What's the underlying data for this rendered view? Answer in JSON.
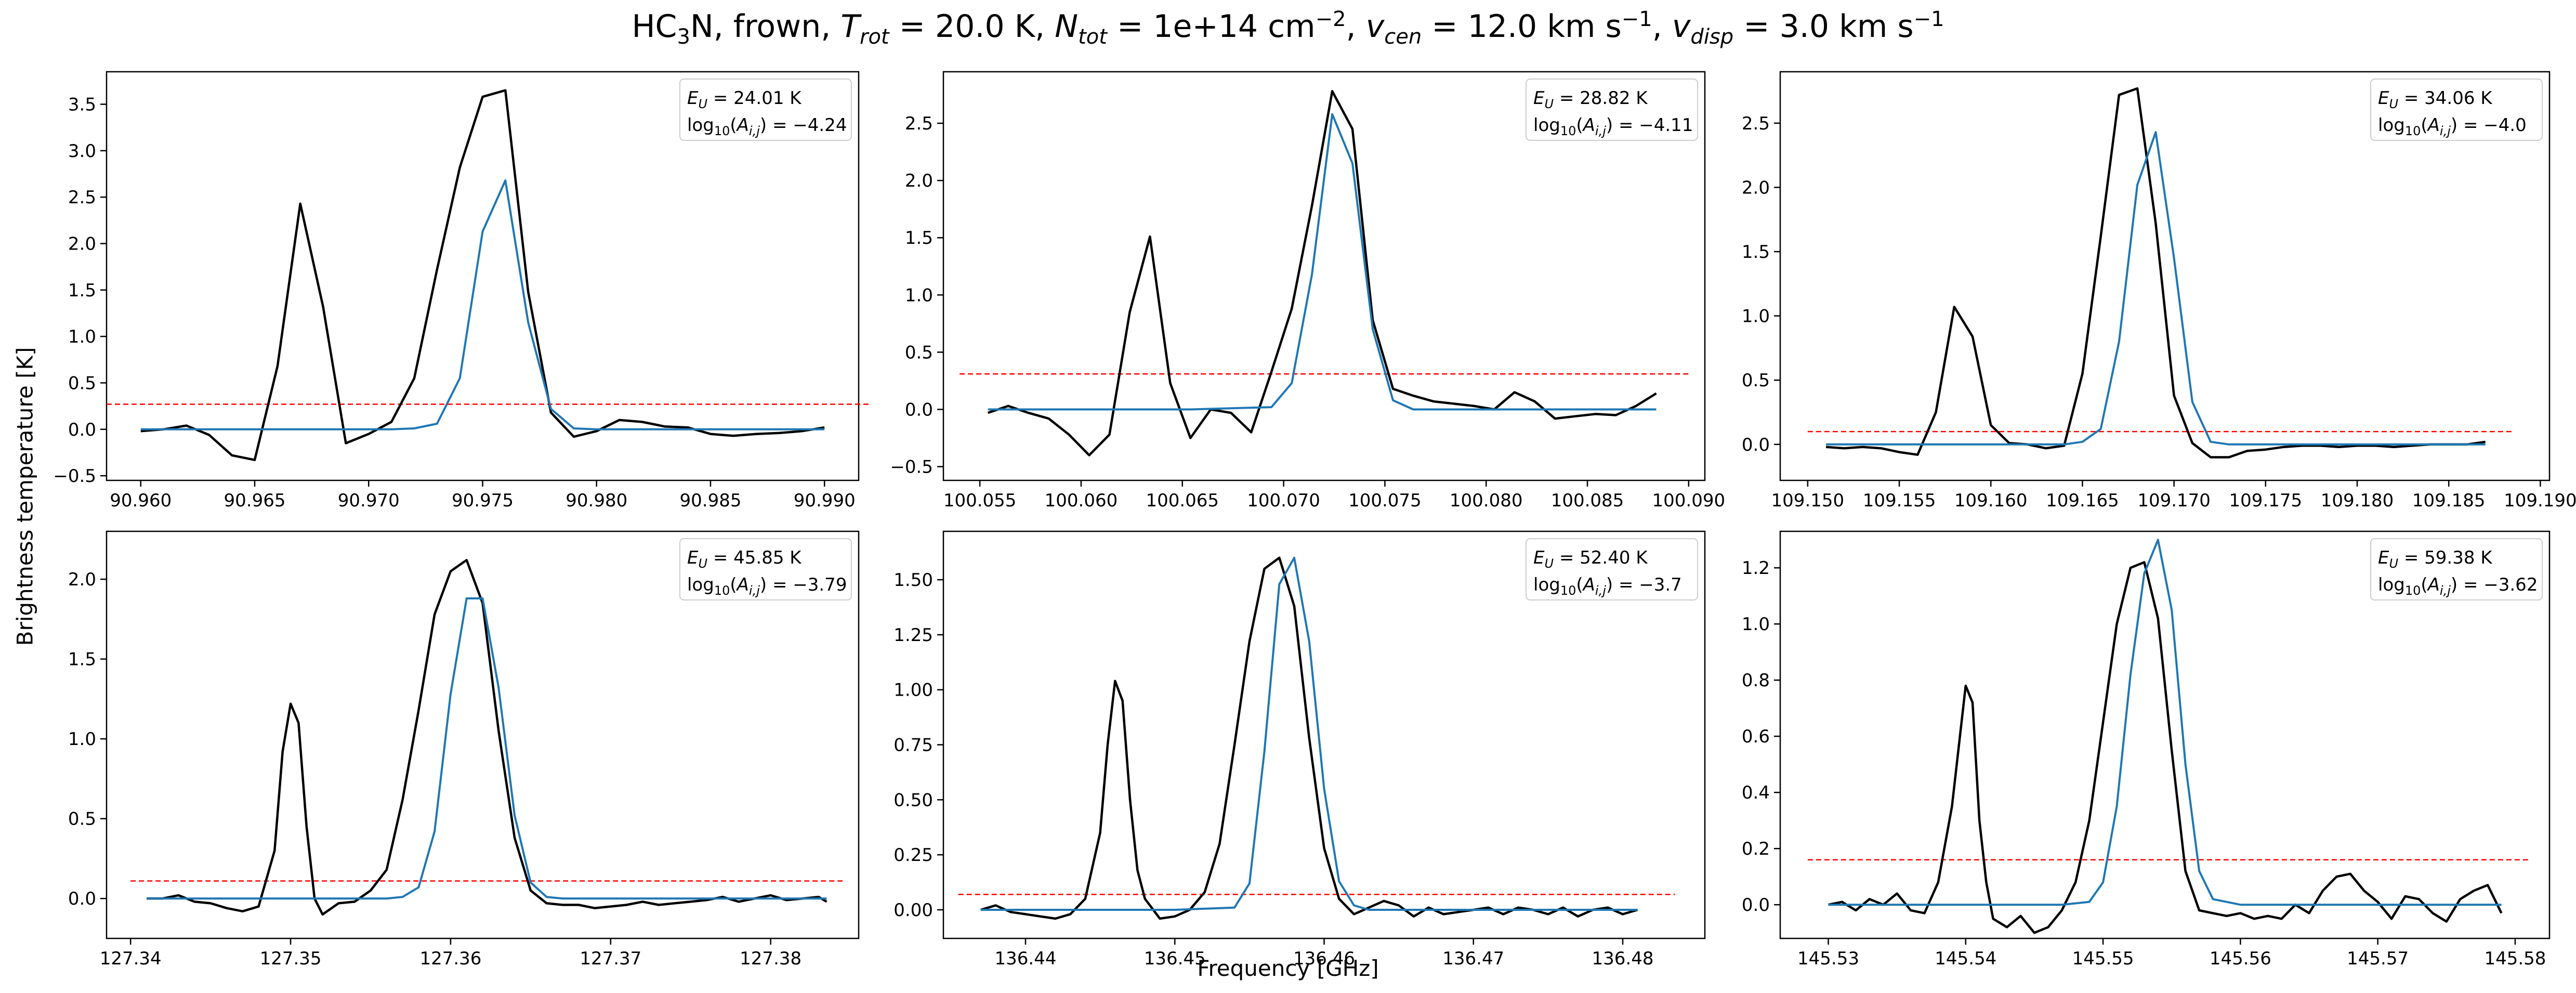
{
  "figure": {
    "title_parts": [
      "HC",
      {
        "sub": "3"
      },
      "N, frown, ",
      {
        "i": "T"
      },
      {
        "isub": "rot"
      },
      " =  20.0 K, ",
      {
        "i": "N"
      },
      {
        "isub": "tot"
      },
      " =  1e+14 cm",
      {
        "sup": "−2"
      },
      ", ",
      {
        "i": "v"
      },
      {
        "isub": "cen"
      },
      " =  12.0 km s",
      {
        "sup": "−1"
      },
      ", ",
      {
        "i": "v"
      },
      {
        "isub": "disp"
      },
      " =  3.0 km s",
      {
        "sup": "−1"
      }
    ],
    "xlabel": "Frequency [GHz]",
    "ylabel": "Brightness temperature [K]"
  },
  "colors": {
    "observed": "#000000",
    "model": "#1f77b4",
    "threshold": "#ff0000"
  },
  "chart_data": [
    {
      "type": "line",
      "xlim": [
        90.9585,
        90.9915
      ],
      "ylim": [
        -0.55,
        3.85
      ],
      "xticks": [
        "90.960",
        "90.965",
        "90.970",
        "90.975",
        "90.980",
        "90.985",
        "90.990"
      ],
      "yticks": [
        "−0.5",
        "0.0",
        "0.5",
        "1.0",
        "1.5",
        "2.0",
        "2.5",
        "3.0",
        "3.5"
      ],
      "legend_location": "top-right",
      "legend": {
        "EU": "24.01",
        "logA": "−4.24"
      },
      "threshold": 0.27,
      "threshold_x": [
        90.9585,
        90.992
      ],
      "series": [
        {
          "role": "observed",
          "x": [
            90.96,
            90.961,
            90.962,
            90.963,
            90.964,
            90.965,
            90.966,
            90.967,
            90.968,
            90.969,
            90.97,
            90.971,
            90.972,
            90.973,
            90.974,
            90.975,
            90.976,
            90.977,
            90.978,
            90.979,
            90.98,
            90.981,
            90.982,
            90.983,
            90.984,
            90.985,
            90.986,
            90.987,
            90.988,
            90.989,
            90.99
          ],
          "y": [
            -0.02,
            0.0,
            0.04,
            -0.06,
            -0.28,
            -0.33,
            0.68,
            2.43,
            1.32,
            -0.15,
            -0.05,
            0.08,
            0.55,
            1.72,
            2.82,
            3.58,
            3.65,
            1.48,
            0.18,
            -0.08,
            -0.02,
            0.1,
            0.08,
            0.03,
            0.02,
            -0.05,
            -0.07,
            -0.05,
            -0.04,
            -0.02,
            0.02
          ]
        },
        {
          "role": "model",
          "x": [
            90.96,
            90.961,
            90.962,
            90.963,
            90.964,
            90.965,
            90.966,
            90.967,
            90.968,
            90.969,
            90.97,
            90.971,
            90.972,
            90.973,
            90.974,
            90.975,
            90.976,
            90.977,
            90.978,
            90.979,
            90.98,
            90.981,
            90.982,
            90.983,
            90.984,
            90.985,
            90.986,
            90.987,
            90.988,
            90.989,
            90.99
          ],
          "y": [
            0,
            0,
            0,
            0,
            0,
            0,
            0,
            0,
            0,
            0,
            0,
            0,
            0.01,
            0.06,
            0.55,
            2.13,
            2.68,
            1.15,
            0.22,
            0.01,
            0,
            0,
            0,
            0,
            0,
            0,
            0,
            0,
            0,
            0,
            0
          ]
        }
      ]
    },
    {
      "type": "line",
      "xlim": [
        100.0532,
        100.0908
      ],
      "ylim": [
        -0.62,
        2.95
      ],
      "xticks": [
        "100.055",
        "100.060",
        "100.065",
        "100.070",
        "100.075",
        "100.080",
        "100.085",
        "100.090"
      ],
      "yticks": [
        "−0.5",
        "0.0",
        "0.5",
        "1.0",
        "1.5",
        "2.0",
        "2.5"
      ],
      "legend_location": "top-right",
      "legend": {
        "EU": "28.82",
        "logA": "−4.11"
      },
      "threshold": 0.31,
      "threshold_x": [
        100.054,
        100.09
      ],
      "series": [
        {
          "role": "observed",
          "x": [
            100.0554,
            100.0564,
            100.0574,
            100.0584,
            100.0594,
            100.0604,
            100.0614,
            100.0624,
            100.0634,
            100.0644,
            100.0654,
            100.0664,
            100.0674,
            100.0684,
            100.0694,
            100.0704,
            100.0714,
            100.0724,
            100.0734,
            100.0744,
            100.0754,
            100.0764,
            100.0774,
            100.0784,
            100.0794,
            100.0804,
            100.0814,
            100.0824,
            100.0834,
            100.0844,
            100.0854,
            100.0864,
            100.0874,
            100.0884
          ],
          "y": [
            -0.03,
            0.03,
            -0.03,
            -0.08,
            -0.22,
            -0.4,
            -0.22,
            0.85,
            1.51,
            0.23,
            -0.25,
            0.0,
            -0.03,
            -0.2,
            0.33,
            0.88,
            1.78,
            2.78,
            2.45,
            0.78,
            0.18,
            0.12,
            0.07,
            0.05,
            0.03,
            0.0,
            0.15,
            0.07,
            -0.08,
            -0.06,
            -0.04,
            -0.05,
            0.03,
            0.14
          ]
        },
        {
          "role": "model",
          "x": [
            100.0554,
            100.0604,
            100.0654,
            100.0694,
            100.0704,
            100.0714,
            100.0724,
            100.0734,
            100.0744,
            100.0754,
            100.0764,
            100.0804,
            100.0884
          ],
          "y": [
            0,
            0,
            0,
            0.02,
            0.23,
            1.18,
            2.58,
            2.15,
            0.7,
            0.08,
            0.0,
            0,
            0
          ]
        }
      ]
    },
    {
      "type": "line",
      "xlim": [
        109.1485,
        109.1905
      ],
      "ylim": [
        -0.28,
        2.9
      ],
      "xticks": [
        "109.150",
        "109.155",
        "109.160",
        "109.165",
        "109.170",
        "109.175",
        "109.180",
        "109.185",
        "109.190"
      ],
      "yticks": [
        "0.0",
        "0.5",
        "1.0",
        "1.5",
        "2.0",
        "2.5"
      ],
      "legend_location": "top-right",
      "legend": {
        "EU": "34.06",
        "logA": "−4.0"
      },
      "threshold": 0.1,
      "threshold_x": [
        109.15,
        109.1885
      ],
      "series": [
        {
          "role": "observed",
          "x": [
            109.151,
            109.152,
            109.153,
            109.154,
            109.155,
            109.156,
            109.157,
            109.158,
            109.159,
            109.16,
            109.161,
            109.162,
            109.163,
            109.164,
            109.165,
            109.166,
            109.167,
            109.168,
            109.169,
            109.17,
            109.171,
            109.172,
            109.173,
            109.174,
            109.175,
            109.176,
            109.177,
            109.178,
            109.179,
            109.18,
            109.181,
            109.182,
            109.183,
            109.184,
            109.185,
            109.186,
            109.187
          ],
          "y": [
            -0.02,
            -0.03,
            -0.02,
            -0.03,
            -0.06,
            -0.08,
            0.25,
            1.07,
            0.84,
            0.15,
            0.01,
            0.0,
            -0.03,
            -0.01,
            0.55,
            1.62,
            2.72,
            2.77,
            1.72,
            0.38,
            0.01,
            -0.1,
            -0.1,
            -0.05,
            -0.04,
            -0.02,
            -0.01,
            -0.01,
            -0.02,
            -0.01,
            -0.01,
            -0.02,
            -0.01,
            0.0,
            0.0,
            0.0,
            0.02
          ]
        },
        {
          "role": "model",
          "x": [
            109.151,
            109.16,
            109.164,
            109.165,
            109.166,
            109.167,
            109.168,
            109.169,
            109.17,
            109.171,
            109.172,
            109.173,
            109.18,
            109.187
          ],
          "y": [
            0,
            0,
            0,
            0.02,
            0.12,
            0.8,
            2.02,
            2.43,
            1.45,
            0.33,
            0.02,
            0,
            0,
            0
          ]
        }
      ]
    },
    {
      "type": "line",
      "xlim": [
        127.3385,
        127.3855
      ],
      "ylim": [
        -0.25,
        2.3
      ],
      "xticks": [
        "127.34",
        "127.35",
        "127.36",
        "127.37",
        "127.38"
      ],
      "yticks": [
        "0.0",
        "0.5",
        "1.0",
        "1.5",
        "2.0"
      ],
      "legend_location": "top-right",
      "legend": {
        "EU": "45.85",
        "logA": "−3.79"
      },
      "threshold": 0.11,
      "threshold_x": [
        127.34,
        127.3845
      ],
      "series": [
        {
          "role": "observed",
          "x": [
            127.341,
            127.342,
            127.343,
            127.344,
            127.345,
            127.346,
            127.347,
            127.348,
            127.349,
            127.3495,
            127.35,
            127.3505,
            127.351,
            127.3515,
            127.352,
            127.353,
            127.354,
            127.355,
            127.356,
            127.357,
            127.358,
            127.359,
            127.36,
            127.361,
            127.362,
            127.363,
            127.364,
            127.365,
            127.366,
            127.367,
            127.368,
            127.369,
            127.37,
            127.371,
            127.372,
            127.373,
            127.374,
            127.375,
            127.376,
            127.377,
            127.378,
            127.379,
            127.38,
            127.381,
            127.382,
            127.383,
            127.3835
          ],
          "y": [
            0.0,
            0.0,
            0.02,
            -0.02,
            -0.03,
            -0.06,
            -0.08,
            -0.05,
            0.3,
            0.92,
            1.22,
            1.1,
            0.45,
            0.0,
            -0.1,
            -0.03,
            -0.02,
            0.05,
            0.18,
            0.62,
            1.18,
            1.78,
            2.05,
            2.12,
            1.85,
            1.05,
            0.38,
            0.05,
            -0.03,
            -0.04,
            -0.04,
            -0.06,
            -0.05,
            -0.04,
            -0.02,
            -0.04,
            -0.03,
            -0.02,
            -0.01,
            0.01,
            -0.02,
            0.0,
            0.02,
            -0.01,
            0.0,
            0.01,
            -0.02
          ]
        },
        {
          "role": "model",
          "x": [
            127.341,
            127.35,
            127.356,
            127.357,
            127.358,
            127.359,
            127.36,
            127.361,
            127.362,
            127.363,
            127.364,
            127.365,
            127.366,
            127.367,
            127.368,
            127.3835
          ],
          "y": [
            0,
            0,
            0,
            0.01,
            0.07,
            0.42,
            1.28,
            1.88,
            1.88,
            1.32,
            0.52,
            0.1,
            0.01,
            0,
            0,
            0
          ]
        }
      ]
    },
    {
      "type": "line",
      "xlim": [
        136.4345,
        136.4855
      ],
      "ylim": [
        -0.13,
        1.72
      ],
      "xticks": [
        "136.44",
        "136.45",
        "136.46",
        "136.47",
        "136.48"
      ],
      "yticks": [
        "0.00",
        "0.25",
        "0.50",
        "0.75",
        "1.00",
        "1.25",
        "1.50"
      ],
      "legend_location": "top-right",
      "legend": {
        "EU": "52.40",
        "logA": "−3.7"
      },
      "threshold": 0.07,
      "threshold_x": [
        136.4355,
        136.4835
      ],
      "series": [
        {
          "role": "observed",
          "x": [
            136.437,
            136.438,
            136.439,
            136.44,
            136.441,
            136.442,
            136.443,
            136.444,
            136.445,
            136.4455,
            136.446,
            136.4465,
            136.447,
            136.4475,
            136.448,
            136.449,
            136.45,
            136.451,
            136.452,
            136.453,
            136.454,
            136.455,
            136.456,
            136.457,
            136.458,
            136.459,
            136.46,
            136.461,
            136.462,
            136.463,
            136.464,
            136.465,
            136.466,
            136.467,
            136.468,
            136.469,
            136.47,
            136.471,
            136.472,
            136.473,
            136.474,
            136.475,
            136.476,
            136.477,
            136.478,
            136.479,
            136.48,
            136.481
          ],
          "y": [
            0.0,
            0.02,
            -0.01,
            -0.02,
            -0.03,
            -0.04,
            -0.02,
            0.05,
            0.35,
            0.75,
            1.04,
            0.95,
            0.5,
            0.18,
            0.05,
            -0.04,
            -0.03,
            0.0,
            0.08,
            0.3,
            0.75,
            1.22,
            1.55,
            1.6,
            1.38,
            0.78,
            0.28,
            0.05,
            -0.02,
            0.01,
            0.04,
            0.02,
            -0.03,
            0.01,
            -0.02,
            -0.01,
            0.0,
            0.01,
            -0.02,
            0.01,
            0.0,
            -0.02,
            0.01,
            -0.03,
            0.0,
            0.01,
            -0.02,
            0.0
          ]
        },
        {
          "role": "model",
          "x": [
            136.437,
            136.45,
            136.454,
            136.455,
            136.456,
            136.457,
            136.458,
            136.459,
            136.46,
            136.461,
            136.462,
            136.463,
            136.465,
            136.481
          ],
          "y": [
            0,
            0,
            0.01,
            0.12,
            0.72,
            1.48,
            1.6,
            1.22,
            0.55,
            0.13,
            0.02,
            0,
            0,
            0
          ]
        }
      ]
    },
    {
      "type": "line",
      "xlim": [
        145.5265,
        145.5825
      ],
      "ylim": [
        -0.12,
        1.33
      ],
      "xticks": [
        "145.53",
        "145.54",
        "145.55",
        "145.56",
        "145.57",
        "145.58"
      ],
      "yticks": [
        "0.0",
        "0.2",
        "0.4",
        "0.6",
        "0.8",
        "1.0",
        "1.2"
      ],
      "legend_location": "top-right",
      "legend": {
        "EU": "59.38",
        "logA": "−3.62"
      },
      "threshold": 0.16,
      "threshold_x": [
        145.5285,
        145.581
      ],
      "series": [
        {
          "role": "observed",
          "x": [
            145.53,
            145.531,
            145.532,
            145.533,
            145.534,
            145.535,
            145.536,
            145.537,
            145.538,
            145.539,
            145.54,
            145.5405,
            145.541,
            145.5415,
            145.542,
            145.543,
            145.544,
            145.545,
            145.546,
            145.547,
            145.548,
            145.549,
            145.55,
            145.551,
            145.552,
            145.553,
            145.554,
            145.555,
            145.556,
            145.557,
            145.558,
            145.559,
            145.56,
            145.561,
            145.562,
            145.563,
            145.564,
            145.565,
            145.566,
            145.567,
            145.568,
            145.569,
            145.57,
            145.571,
            145.572,
            145.573,
            145.574,
            145.575,
            145.576,
            145.577,
            145.578,
            145.579
          ],
          "y": [
            0.0,
            0.01,
            -0.02,
            0.02,
            0.0,
            0.04,
            -0.02,
            -0.03,
            0.08,
            0.35,
            0.78,
            0.72,
            0.3,
            0.08,
            -0.05,
            -0.08,
            -0.04,
            -0.1,
            -0.08,
            -0.02,
            0.08,
            0.3,
            0.65,
            1.0,
            1.2,
            1.22,
            1.02,
            0.55,
            0.12,
            -0.02,
            -0.03,
            -0.04,
            -0.03,
            -0.05,
            -0.04,
            -0.05,
            0.0,
            -0.03,
            0.05,
            0.1,
            0.11,
            0.05,
            0.01,
            -0.05,
            0.03,
            0.02,
            -0.03,
            -0.06,
            0.02,
            0.05,
            0.07,
            -0.03
          ]
        },
        {
          "role": "model",
          "x": [
            145.53,
            145.547,
            145.549,
            145.55,
            145.551,
            145.552,
            145.553,
            145.554,
            145.555,
            145.556,
            145.557,
            145.558,
            145.56,
            145.579
          ],
          "y": [
            0,
            0,
            0.01,
            0.08,
            0.35,
            0.82,
            1.18,
            1.3,
            1.05,
            0.5,
            0.12,
            0.02,
            0,
            0
          ]
        }
      ]
    }
  ]
}
